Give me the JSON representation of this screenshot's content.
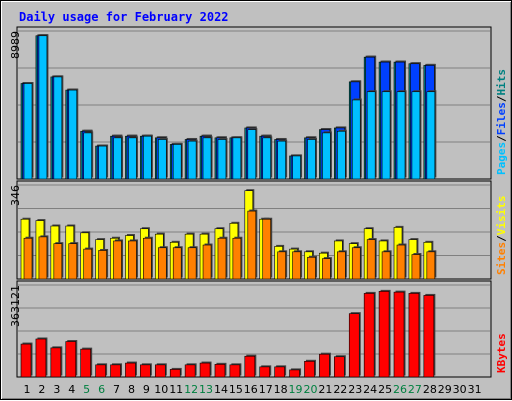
{
  "chart_data": {
    "type": "bar",
    "title": "Daily usage for February 2022",
    "categories": [
      "1",
      "2",
      "3",
      "4",
      "5",
      "6",
      "7",
      "8",
      "9",
      "10",
      "11",
      "12",
      "13",
      "14",
      "15",
      "16",
      "17",
      "18",
      "19",
      "20",
      "21",
      "22",
      "23",
      "24",
      "25",
      "26",
      "27",
      "28",
      "29",
      "30",
      "31"
    ],
    "weekend_days": [
      "5",
      "6",
      "12",
      "13",
      "19",
      "20",
      "26",
      "27"
    ],
    "panels": [
      {
        "name": "hits-files-pages",
        "y_max_label": "8989",
        "side_label_parts": [
          "Pages",
          "/",
          "Files",
          "/",
          "Hits"
        ],
        "side_label_colors": [
          "#00c0ff",
          "#000000",
          "#0040ff",
          "#000000",
          "#008080"
        ],
        "ylim": [
          0,
          8989
        ],
        "series": [
          {
            "name": "Hits",
            "color": "#008080",
            "values": [
              5800,
              8700,
              6200,
              5400,
              2900,
              2000,
              2600,
              2600,
              2600,
              2500,
              2100,
              2400,
              2600,
              2500,
              2500,
              3100,
              2600,
              2400,
              1400,
              2500,
              3000,
              3100,
              5900,
              7400,
              7100,
              7100,
              7000,
              6900,
              null,
              null,
              null
            ]
          },
          {
            "name": "Files",
            "color": "#0040ff",
            "values": [
              5800,
              8700,
              6200,
              5400,
              2900,
              2000,
              2600,
              2600,
              2600,
              2500,
              2100,
              2400,
              2600,
              2500,
              2500,
              3100,
              2600,
              2400,
              1400,
              2500,
              3000,
              3100,
              5900,
              7400,
              7100,
              7100,
              7000,
              6900,
              null,
              null,
              null
            ]
          },
          {
            "name": "Pages",
            "color": "#00c0ff",
            "values": [
              5800,
              8700,
              6200,
              5400,
              2800,
              2000,
              2500,
              2500,
              2600,
              2400,
              2100,
              2300,
              2500,
              2400,
              2500,
              3000,
              2500,
              2300,
              1400,
              2400,
              2800,
              2900,
              4800,
              5300,
              5300,
              5300,
              5300,
              5300,
              null,
              null,
              null
            ]
          }
        ]
      },
      {
        "name": "visits-sites",
        "y_max_label": "346",
        "side_label_parts": [
          "Sites",
          "/",
          "Visits"
        ],
        "side_label_colors": [
          "#ff8000",
          "#000000",
          "#ffff00"
        ],
        "ylim": [
          0,
          346
        ],
        "series": [
          {
            "name": "Visits",
            "color": "#ffff00",
            "values": [
              220,
              215,
              195,
              195,
              170,
              145,
              150,
              160,
              185,
              165,
              135,
              165,
              165,
              185,
              205,
              325,
              220,
              120,
              110,
              100,
              95,
              140,
              130,
              185,
              140,
              190,
              145,
              135,
              null,
              null,
              null
            ]
          },
          {
            "name": "Sites",
            "color": "#ff8000",
            "values": [
              150,
              155,
              130,
              130,
              110,
              105,
              140,
              140,
              150,
              115,
              115,
              115,
              125,
              150,
              150,
              250,
              220,
              100,
              100,
              80,
              75,
              100,
              115,
              145,
              100,
              125,
              90,
              100,
              null,
              null,
              null
            ]
          }
        ]
      },
      {
        "name": "kbytes",
        "y_max_label": "363121",
        "side_label_parts": [
          "KBytes"
        ],
        "side_label_colors": [
          "#ff0000"
        ],
        "ylim": [
          0,
          363121
        ],
        "series": [
          {
            "name": "KBytes",
            "color": "#ff0000",
            "values": [
              130000,
              150000,
              115000,
              140000,
              110000,
              48000,
              48000,
              55000,
              48000,
              48000,
              30000,
              48000,
              55000,
              50000,
              48000,
              82000,
              40000,
              40000,
              28000,
              62000,
              90000,
              80000,
              250000,
              330000,
              338000,
              335000,
              330000,
              322000,
              null,
              null,
              null
            ]
          }
        ]
      }
    ],
    "grid": true
  },
  "colors": {
    "background": "#c0c0c0",
    "plot_background": "#c0c0c0",
    "title": "#0000ff",
    "tick": "#000000",
    "weekend_tick": "#008040"
  }
}
